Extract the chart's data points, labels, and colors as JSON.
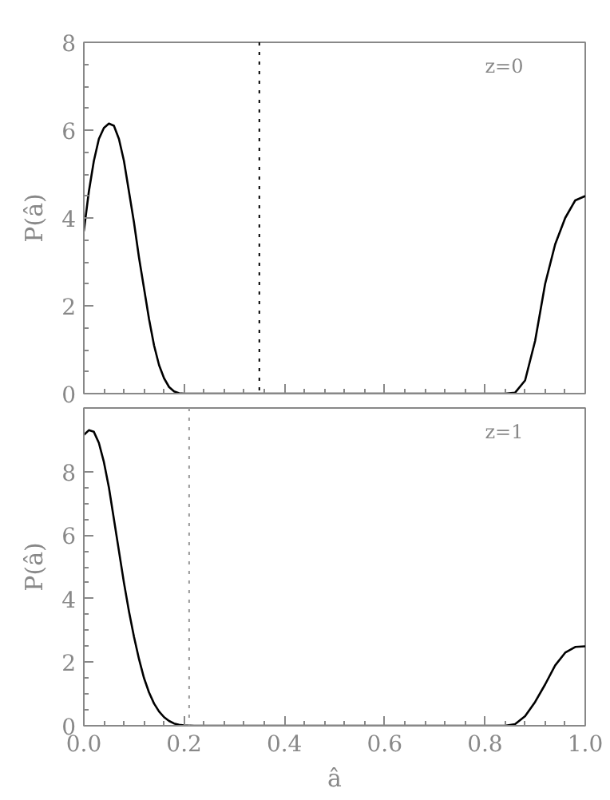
{
  "chart_data": [
    {
      "type": "line",
      "ylabel": "P(â)",
      "annotations": [
        "z=0"
      ],
      "xlim": [
        0,
        1
      ],
      "xticks": [
        0,
        0.2,
        0.4,
        0.6,
        0.8,
        1
      ],
      "ylim": [
        0,
        8
      ],
      "yticks": [
        0,
        2,
        4,
        6,
        8
      ],
      "tick_labels": "y",
      "marker": "none",
      "line_style": "solid",
      "grid": false,
      "ref_lines": [
        {
          "axis": "x",
          "value": 0.35,
          "color": "#000000",
          "line_style": "dotted"
        }
      ],
      "series": [
        {
          "color": "#000000",
          "x": [
            0,
            0.01,
            0.02,
            0.03,
            0.04,
            0.05,
            0.06,
            0.07,
            0.08,
            0.09,
            0.1,
            0.11,
            0.12,
            0.13,
            0.14,
            0.15,
            0.16,
            0.17,
            0.18,
            0.19,
            0.2,
            0.3,
            0.4,
            0.5,
            0.6,
            0.7,
            0.8,
            0.84,
            0.86,
            0.88,
            0.9,
            0.92,
            0.94,
            0.96,
            0.98,
            1.0
          ],
          "values": [
            3.7,
            4.6,
            5.3,
            5.8,
            6.05,
            6.15,
            6.1,
            5.8,
            5.3,
            4.6,
            3.9,
            3.1,
            2.4,
            1.7,
            1.1,
            0.65,
            0.35,
            0.15,
            0.05,
            0.01,
            0,
            0,
            0,
            0,
            0,
            0,
            0,
            0,
            0.02,
            0.3,
            1.2,
            2.5,
            3.4,
            4.0,
            4.4,
            4.5
          ]
        }
      ]
    },
    {
      "type": "line",
      "xlabel": "â",
      "ylabel": "P(â)",
      "annotations": [
        "z=1"
      ],
      "xlim": [
        0,
        1
      ],
      "xticks": [
        {
          "value": 0,
          "label": "0.0"
        },
        0.2,
        0.4,
        0.6,
        0.8,
        {
          "value": 1,
          "label": "1.0"
        }
      ],
      "ylim": [
        0,
        10
      ],
      "yticks": [
        0,
        2,
        4,
        6,
        8
      ],
      "marker": "none",
      "line_style": "solid",
      "grid": false,
      "ref_lines": [
        {
          "axis": "x",
          "value": 0.21,
          "color": "#999999",
          "line_style": "dotted"
        }
      ],
      "series": [
        {
          "color": "#000000",
          "x": [
            0,
            0.01,
            0.02,
            0.03,
            0.04,
            0.05,
            0.06,
            0.07,
            0.08,
            0.09,
            0.1,
            0.11,
            0.12,
            0.13,
            0.14,
            0.15,
            0.16,
            0.17,
            0.18,
            0.19,
            0.2,
            0.22,
            0.3,
            0.4,
            0.5,
            0.6,
            0.7,
            0.8,
            0.84,
            0.86,
            0.88,
            0.9,
            0.92,
            0.94,
            0.96,
            0.98,
            1.0
          ],
          "values": [
            9.15,
            9.3,
            9.25,
            8.9,
            8.3,
            7.5,
            6.5,
            5.5,
            4.5,
            3.6,
            2.8,
            2.1,
            1.5,
            1.05,
            0.7,
            0.45,
            0.27,
            0.15,
            0.07,
            0.03,
            0.01,
            0,
            0,
            0,
            0,
            0,
            0,
            0,
            0,
            0.05,
            0.3,
            0.75,
            1.3,
            1.9,
            2.3,
            2.48,
            2.5
          ]
        }
      ]
    }
  ]
}
